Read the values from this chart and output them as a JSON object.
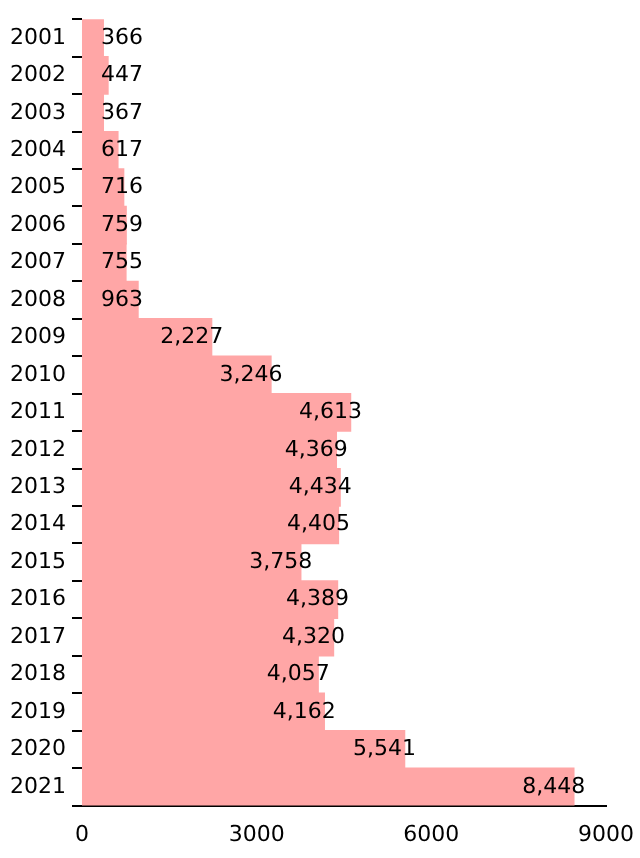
{
  "chart_data": {
    "type": "bar",
    "orientation": "horizontal",
    "categories": [
      "2001",
      "2002",
      "2003",
      "2004",
      "2005",
      "2006",
      "2007",
      "2008",
      "2009",
      "2010",
      "2011",
      "2012",
      "2013",
      "2014",
      "2015",
      "2016",
      "2017",
      "2018",
      "2019",
      "2020",
      "2021"
    ],
    "values": [
      366,
      447,
      367,
      617,
      716,
      759,
      755,
      963,
      2227,
      3246,
      4613,
      4369,
      4434,
      4405,
      3758,
      4389,
      4320,
      4057,
      4162,
      5541,
      8448
    ],
    "value_labels": [
      "366",
      "447",
      "367",
      "617",
      "716",
      "759",
      "755",
      "963",
      "2,227",
      "3,246",
      "4,613",
      "4,369",
      "4,434",
      "4,405",
      "3,758",
      "4,389",
      "4,320",
      "4,057",
      "4,162",
      "5,541",
      "8,448"
    ],
    "color": "#ffa6a6",
    "xlim": [
      0,
      9000
    ],
    "xticks": [
      0,
      3000,
      6000,
      9000
    ],
    "grid": false,
    "legend": false
  }
}
